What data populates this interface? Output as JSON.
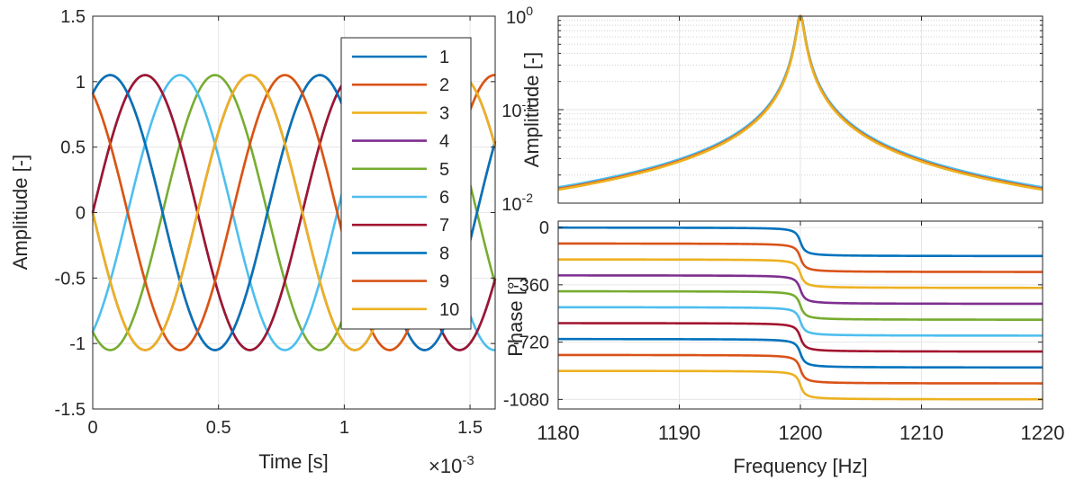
{
  "chart_data": [
    {
      "type": "line",
      "title": "",
      "xlabel": "Time [s]",
      "ylabel": "Amplitiude [-]",
      "x_exponent_label": "×10",
      "x_exponent_power": "-3",
      "xlim": [
        0,
        0.0016
      ],
      "ylim": [
        -1.5,
        1.5
      ],
      "x_ticks": [
        0,
        0.0005,
        0.001,
        0.0015
      ],
      "x_tick_labels": [
        "0",
        "0.5",
        "1",
        "1.5"
      ],
      "y_ticks": [
        -1.5,
        -1,
        -0.5,
        0,
        0.5,
        1,
        1.5
      ],
      "y_tick_labels": [
        "-1.5",
        "-1",
        "-0.5",
        "0",
        "0.5",
        "1",
        "1.5"
      ],
      "grid": true,
      "legend_placement": "top-right",
      "frequency_hz": 1200,
      "amplitude": 1.05,
      "series": [
        {
          "name": "1",
          "phase_deg": 0
        },
        {
          "name": "2",
          "phase_deg": 60
        },
        {
          "name": "3",
          "phase_deg": 120
        },
        {
          "name": "4",
          "phase_deg": 180
        },
        {
          "name": "5",
          "phase_deg": 240
        },
        {
          "name": "6",
          "phase_deg": 300
        },
        {
          "name": "7",
          "phase_deg": 360
        },
        {
          "name": "8",
          "phase_deg": 420
        },
        {
          "name": "9",
          "phase_deg": 480
        },
        {
          "name": "10",
          "phase_deg": 540
        }
      ]
    },
    {
      "type": "line",
      "title": "",
      "xlabel": "",
      "ylabel": "Amplitiude [-]",
      "y_scale": "log",
      "xlim": [
        1180,
        1220
      ],
      "ylim": [
        0.01,
        1
      ],
      "y_ticks": [
        0.01,
        0.1,
        1
      ],
      "y_tick_base": "10",
      "y_tick_powers": [
        "-2",
        "-1",
        "0"
      ],
      "grid": true,
      "minor_grid": true,
      "resonance_hz": 1200,
      "peak": 1,
      "value_at_1180": 0.0142,
      "value_at_1220": 0.0142
    },
    {
      "type": "line",
      "title": "",
      "xlabel": "Frequency [Hz]",
      "ylabel": "Phase [°]",
      "xlim": [
        1180,
        1220
      ],
      "ylim": [
        -1140,
        40
      ],
      "x_ticks": [
        1180,
        1190,
        1200,
        1210,
        1220
      ],
      "x_tick_labels": [
        "1180",
        "1190",
        "1200",
        "1210",
        "1220"
      ],
      "y_ticks": [
        0,
        -360,
        -720,
        -1080
      ],
      "y_tick_labels": [
        "0",
        "-360",
        "-720",
        "-1080"
      ],
      "grid": true,
      "resonance_hz": 1200,
      "series": [
        {
          "name": "1",
          "start_deg": 0,
          "end_deg": -180
        },
        {
          "name": "2",
          "start_deg": -100,
          "end_deg": -280
        },
        {
          "name": "3",
          "start_deg": -200,
          "end_deg": -380
        },
        {
          "name": "4",
          "start_deg": -300,
          "end_deg": -480
        },
        {
          "name": "5",
          "start_deg": -400,
          "end_deg": -580
        },
        {
          "name": "6",
          "start_deg": -500,
          "end_deg": -680
        },
        {
          "name": "7",
          "start_deg": -600,
          "end_deg": -780
        },
        {
          "name": "8",
          "start_deg": -700,
          "end_deg": -880
        },
        {
          "name": "9",
          "start_deg": -800,
          "end_deg": -980
        },
        {
          "name": "10",
          "start_deg": -900,
          "end_deg": -1080
        }
      ]
    }
  ],
  "colors": [
    "#0072BD",
    "#D95319",
    "#EDB120",
    "#7E2F8E",
    "#77AC30",
    "#4DBEEE",
    "#A2142F",
    "#0072BD",
    "#D95319",
    "#EDB120"
  ]
}
